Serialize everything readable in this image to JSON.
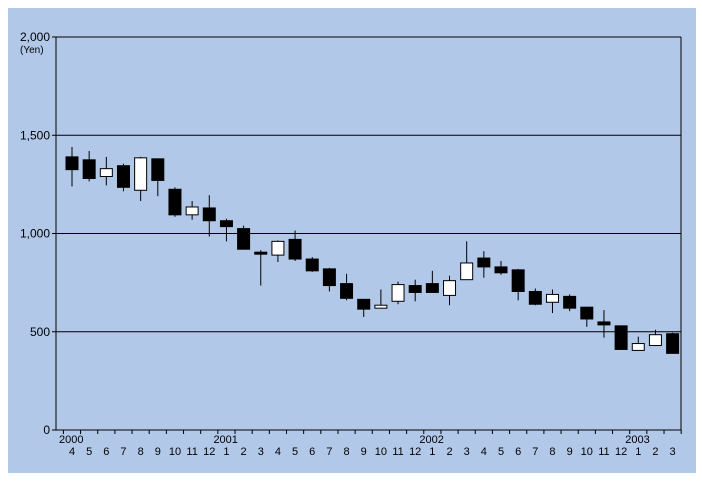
{
  "colors": {
    "background": "#b2c8e8",
    "up_fill": "#ffffff",
    "down_fill": "#000000",
    "line": "#000000"
  },
  "chart_data": {
    "type": "candlestick",
    "ylabel": "(Yen)",
    "ylim": [
      0,
      2000
    ],
    "yticks": [
      0,
      500,
      1000,
      1500,
      2000
    ],
    "ytick_labels": [
      "0",
      "500",
      "1,000",
      "1,500",
      "2,000"
    ],
    "grid": "horizontal",
    "categories": [
      "4",
      "5",
      "6",
      "7",
      "8",
      "9",
      "10",
      "11",
      "12",
      "1",
      "2",
      "3",
      "4",
      "5",
      "6",
      "7",
      "8",
      "9",
      "10",
      "11",
      "12",
      "1",
      "2",
      "3",
      "4",
      "5",
      "6",
      "7",
      "8",
      "9",
      "10",
      "11",
      "12",
      "1",
      "2",
      "3"
    ],
    "year_labels": [
      {
        "label": "2000",
        "index": 0
      },
      {
        "label": "2001",
        "index": 9
      },
      {
        "label": "2002",
        "index": 21
      },
      {
        "label": "2003",
        "index": 33
      }
    ],
    "candles": [
      {
        "open": 1390,
        "close": 1325,
        "high": 1440,
        "low": 1240
      },
      {
        "open": 1375,
        "close": 1280,
        "high": 1420,
        "low": 1265
      },
      {
        "open": 1290,
        "close": 1330,
        "high": 1390,
        "low": 1245
      },
      {
        "open": 1345,
        "close": 1235,
        "high": 1355,
        "low": 1215
      },
      {
        "open": 1220,
        "close": 1385,
        "high": 1390,
        "low": 1165
      },
      {
        "open": 1380,
        "close": 1270,
        "high": 1380,
        "low": 1190
      },
      {
        "open": 1225,
        "close": 1095,
        "high": 1235,
        "low": 1085
      },
      {
        "open": 1095,
        "close": 1135,
        "high": 1165,
        "low": 1070
      },
      {
        "open": 1130,
        "close": 1065,
        "high": 1195,
        "low": 985
      },
      {
        "open": 1065,
        "close": 1035,
        "high": 1075,
        "low": 960
      },
      {
        "open": 1025,
        "close": 920,
        "high": 1040,
        "low": 920
      },
      {
        "open": 905,
        "close": 895,
        "high": 915,
        "low": 735
      },
      {
        "open": 890,
        "close": 960,
        "high": 965,
        "low": 855
      },
      {
        "open": 970,
        "close": 870,
        "high": 1015,
        "low": 860
      },
      {
        "open": 870,
        "close": 810,
        "high": 880,
        "low": 805
      },
      {
        "open": 820,
        "close": 735,
        "high": 825,
        "low": 705
      },
      {
        "open": 745,
        "close": 670,
        "high": 795,
        "low": 660
      },
      {
        "open": 665,
        "close": 615,
        "high": 665,
        "low": 575
      },
      {
        "open": 620,
        "close": 635,
        "high": 715,
        "low": 620
      },
      {
        "open": 655,
        "close": 740,
        "high": 755,
        "low": 640
      },
      {
        "open": 735,
        "close": 700,
        "high": 765,
        "low": 655
      },
      {
        "open": 745,
        "close": 700,
        "high": 810,
        "low": 700
      },
      {
        "open": 685,
        "close": 760,
        "high": 785,
        "low": 635
      },
      {
        "open": 765,
        "close": 850,
        "high": 960,
        "low": 765
      },
      {
        "open": 875,
        "close": 830,
        "high": 910,
        "low": 775
      },
      {
        "open": 830,
        "close": 800,
        "high": 860,
        "low": 790
      },
      {
        "open": 815,
        "close": 705,
        "high": 820,
        "low": 660
      },
      {
        "open": 705,
        "close": 640,
        "high": 720,
        "low": 635
      },
      {
        "open": 650,
        "close": 690,
        "high": 715,
        "low": 595
      },
      {
        "open": 680,
        "close": 620,
        "high": 690,
        "low": 605
      },
      {
        "open": 625,
        "close": 565,
        "high": 625,
        "low": 525
      },
      {
        "open": 550,
        "close": 535,
        "high": 610,
        "low": 470
      },
      {
        "open": 530,
        "close": 410,
        "high": 530,
        "low": 410
      },
      {
        "open": 405,
        "close": 440,
        "high": 475,
        "low": 405
      },
      {
        "open": 430,
        "close": 485,
        "high": 510,
        "low": 430
      },
      {
        "open": 490,
        "close": 390,
        "high": 495,
        "low": 390
      }
    ]
  }
}
